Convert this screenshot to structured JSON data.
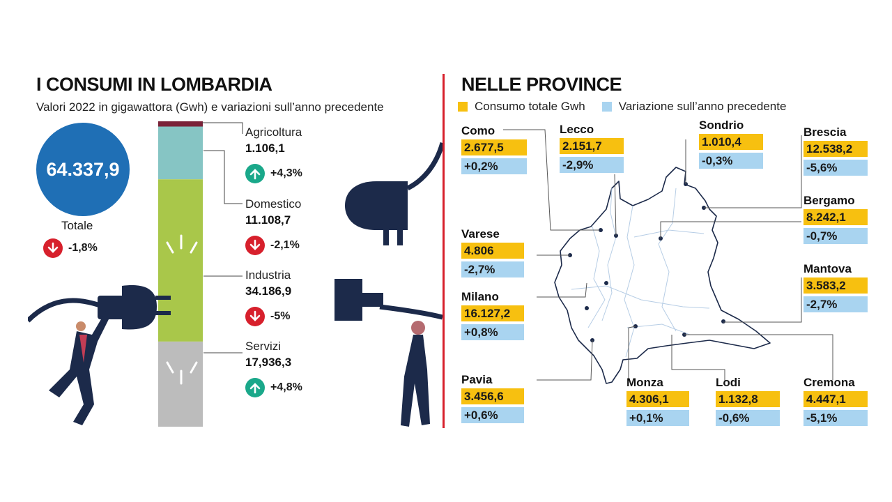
{
  "left": {
    "title": "I CONSUMI IN LOMBARDIA",
    "subtitle": "Valori 2022 in gigawattora (Gwh) e variazioni sull’anno precedente",
    "total_value": "64.337,9",
    "total_label": "Totale",
    "total_change": "-1,8%",
    "total_dir": "down"
  },
  "right": {
    "title": "NELLE PROVINCE",
    "legend": [
      {
        "label": "Consumo totale Gwh",
        "color": "#f7c010"
      },
      {
        "label": "Variazione sull’anno precedente",
        "color": "#a9d4f0"
      }
    ]
  },
  "chart_data": [
    {
      "type": "bar",
      "stacked": true,
      "unit": "Gwh",
      "categories": [
        "Agricoltura",
        "Domestico",
        "Industria",
        "Servizi"
      ],
      "values": [
        1106.1,
        11108.7,
        34186.9,
        17936.3
      ],
      "value_labels": [
        "1.106,1",
        "11.108,7",
        "34.186,9",
        "17,936,3"
      ],
      "changes": [
        "+4,3%",
        "-2,1%",
        "-5%",
        "+4,8%"
      ],
      "directions": [
        "up",
        "down",
        "down",
        "up"
      ],
      "colors": [
        "#7a2238",
        "#86c5c4",
        "#a9c74a",
        "#bcbcbc"
      ]
    },
    {
      "type": "table",
      "columns": [
        "Consumo totale Gwh",
        "Variazione sull’anno precedente"
      ],
      "rows": [
        {
          "name": "Como",
          "value": "2.677,5",
          "change": "+0,2%"
        },
        {
          "name": "Lecco",
          "value": "2.151,7",
          "change": "-2,9%"
        },
        {
          "name": "Sondrio",
          "value": "1.010,4",
          "change": "-0,3%"
        },
        {
          "name": "Brescia",
          "value": "12.538,2",
          "change": "-5,6%"
        },
        {
          "name": "Bergamo",
          "value": "8.242,1",
          "change": "-0,7%"
        },
        {
          "name": "Varese",
          "value": "4.806",
          "change": "-2,7%"
        },
        {
          "name": "Mantova",
          "value": "3.583,2",
          "change": "-2,7%"
        },
        {
          "name": "Milano",
          "value": "16.127,2",
          "change": "+0,8%"
        },
        {
          "name": "Pavia",
          "value": "3.456,6",
          "change": "+0,6%"
        },
        {
          "name": "Monza",
          "value": "4.306,1",
          "change": "+0,1%"
        },
        {
          "name": "Lodi",
          "value": "1.132,8",
          "change": "-0,6%"
        },
        {
          "name": "Cremona",
          "value": "4.447,1",
          "change": "-5,1%"
        }
      ]
    }
  ]
}
